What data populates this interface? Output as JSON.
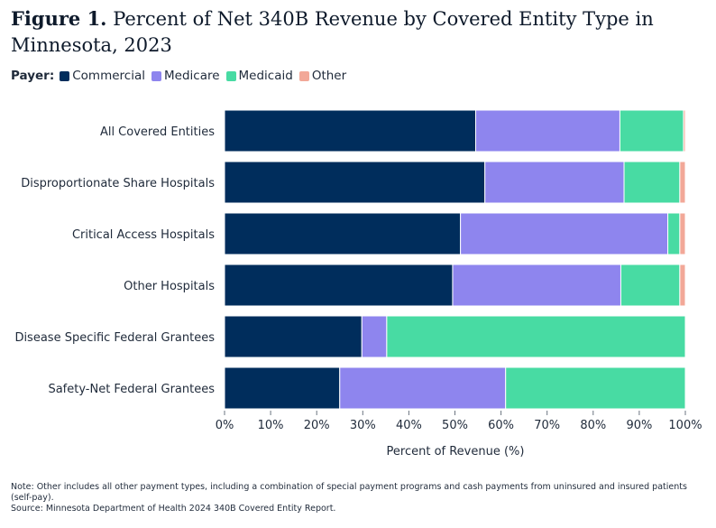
{
  "header": {
    "figure_label": "Figure 1.",
    "title_text": "Percent of Net 340B Revenue by Covered Entity Type in Minnesota, 2023"
  },
  "legend": {
    "label": "Payer:",
    "items": [
      {
        "name": "Commercial",
        "color": "#002d5c"
      },
      {
        "name": "Medicare",
        "color": "#8e85ee"
      },
      {
        "name": "Medicaid",
        "color": "#48dba3"
      },
      {
        "name": "Other",
        "color": "#f2a898"
      }
    ]
  },
  "chart_data": {
    "type": "bar",
    "orientation": "horizontal",
    "stacked": true,
    "title": "Percent of Net 340B Revenue by Covered Entity Type in Minnesota, 2023",
    "xlabel": "Percent of Revenue (%)",
    "ylabel": "",
    "xlim": [
      0,
      100
    ],
    "xticks": [
      "0%",
      "10%",
      "20%",
      "30%",
      "40%",
      "50%",
      "60%",
      "70%",
      "80%",
      "90%",
      "100%"
    ],
    "categories": [
      "All Covered Entities",
      "Disproportionate Share Hospitals",
      "Critical Access Hospitals",
      "Other Hospitals",
      "Disease Specific Federal Grantees",
      "Safety-Net Federal Grantees"
    ],
    "series": [
      {
        "name": "Commercial",
        "color": "#002d5c",
        "values": [
          54.5,
          56.5,
          51.2,
          49.5,
          29.8,
          25.0
        ]
      },
      {
        "name": "Medicare",
        "color": "#8e85ee",
        "values": [
          31.3,
          30.2,
          45.0,
          36.5,
          5.4,
          36.0
        ]
      },
      {
        "name": "Medicaid",
        "color": "#48dba3",
        "values": [
          13.8,
          12.1,
          2.6,
          12.8,
          64.8,
          39.0
        ]
      },
      {
        "name": "Other",
        "color": "#f2a898",
        "values": [
          0.4,
          1.2,
          1.2,
          1.2,
          0.0,
          0.0
        ]
      }
    ]
  },
  "notes": {
    "note": "Note: Other includes all other payment types, including a combination of special payment programs and cash payments from uninsured and insured patients (self-pay).",
    "source": "Source: Minnesota Department of Health 2024 340B Covered Entity Report."
  }
}
